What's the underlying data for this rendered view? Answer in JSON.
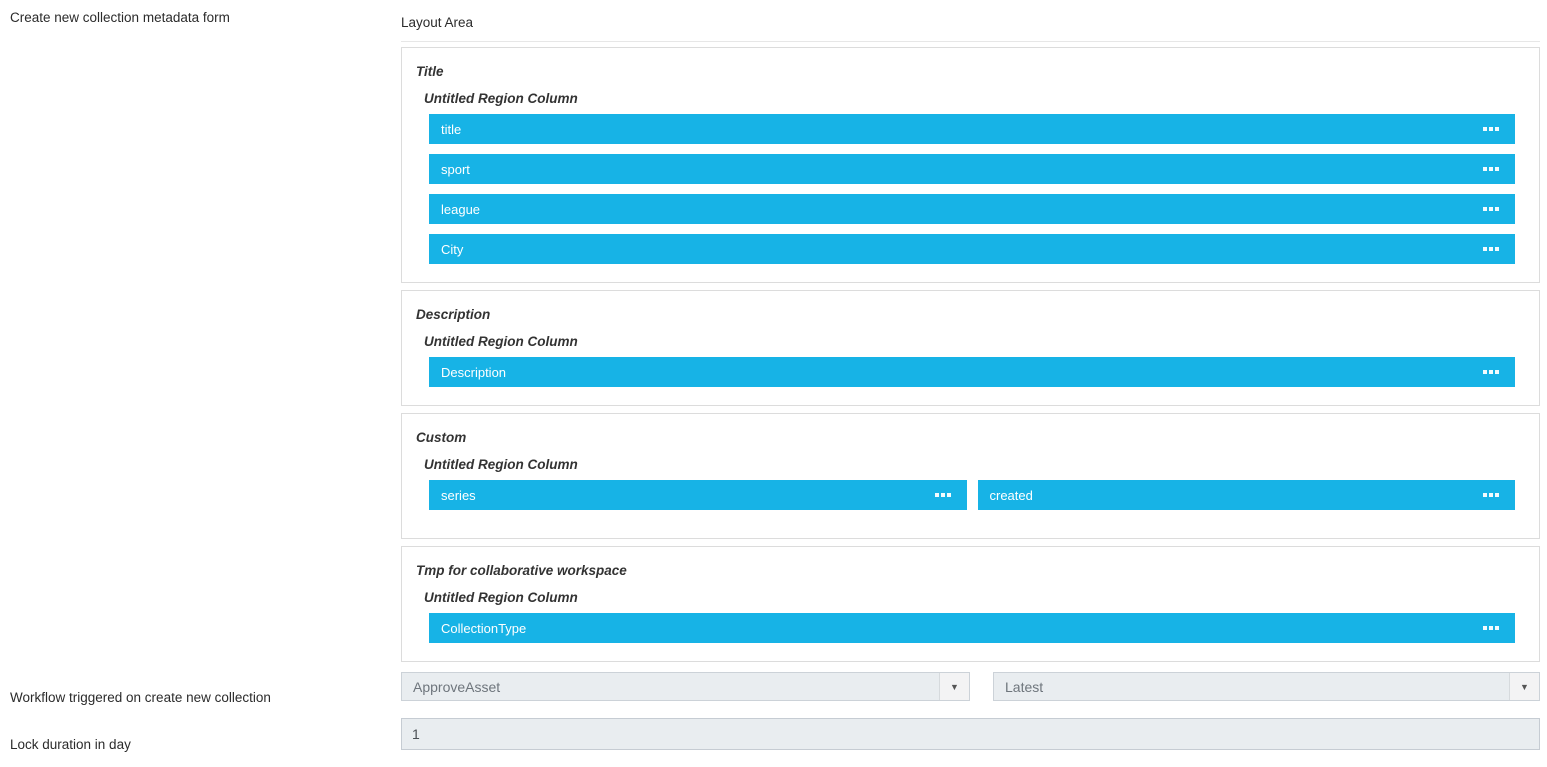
{
  "left_panel": {
    "create_form_label": "Create new collection metadata form",
    "workflow_label": "Workflow triggered on create new collection",
    "lock_duration_label": "Lock duration in day"
  },
  "layout_area": {
    "title": "Layout Area",
    "sections": [
      {
        "title": "Title",
        "region_label": "Untitled Region Column",
        "fields": [
          "title",
          "sport",
          "league",
          "City"
        ]
      },
      {
        "title": "Description",
        "region_label": "Untitled Region Column",
        "fields": [
          "Description"
        ]
      },
      {
        "title": "Custom",
        "region_label": "Untitled Region Column",
        "fields": [
          "series",
          "created"
        ]
      },
      {
        "title": "Tmp for collaborative workspace",
        "region_label": "Untitled Region Column",
        "fields": [
          "CollectionType"
        ]
      }
    ]
  },
  "controls": {
    "workflow_select": {
      "value": "ApproveAsset"
    },
    "workflow_version_select": {
      "value": "Latest"
    },
    "lock_duration_input": {
      "value": "1"
    }
  },
  "icons": {
    "dropdown_arrow_glyph": "▼",
    "drag_handle": "three-white-squares"
  },
  "colors": {
    "accent_blue": "#17b3e6",
    "section_border": "#dcdcdc",
    "control_bg": "#e9edf0",
    "control_border": "#ccd2d8",
    "text_dark": "#333333",
    "text_muted": "#6e757c"
  }
}
